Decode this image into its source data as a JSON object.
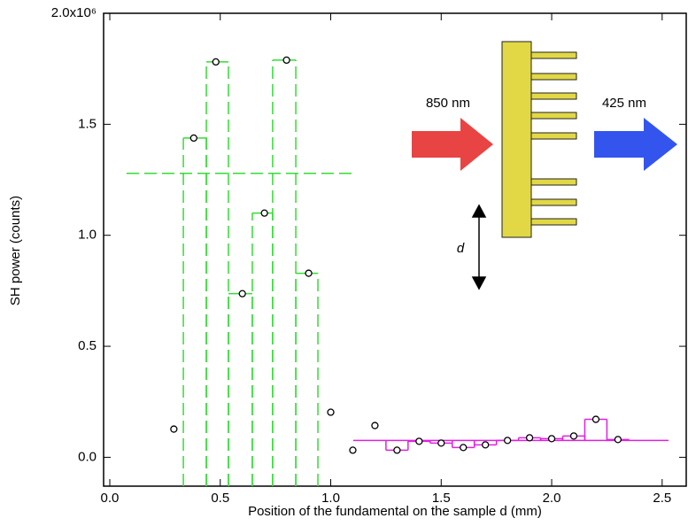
{
  "chart_data": {
    "type": "scatter",
    "xlabel": "Position of the fundamental on the sample d (mm)",
    "ylabel": "SH power (counts)",
    "x": [
      0.29,
      0.38,
      0.48,
      0.6,
      0.7,
      0.8,
      0.9,
      1.0,
      1.1,
      1.2,
      1.3,
      1.4,
      1.5,
      1.6,
      1.7,
      1.8,
      1.9,
      2.0,
      2.1,
      2.2,
      2.3
    ],
    "values": [
      127000,
      1438000,
      1781000,
      737000,
      1100000,
      1789000,
      829000,
      203000,
      32000,
      143000,
      32000,
      72000,
      64000,
      44000,
      56000,
      76000,
      88000,
      84000,
      96000,
      171000,
      80000
    ],
    "xlim": [
      -0.028,
      2.609
    ],
    "ylim": [
      -130000,
      2000000
    ],
    "xticks": [
      {
        "value": 0,
        "label": "0.0"
      },
      {
        "value": 0.5,
        "label": "0.5"
      },
      {
        "value": 1,
        "label": "1.0"
      },
      {
        "value": 1.5,
        "label": "1.5"
      },
      {
        "value": 2,
        "label": "2.0"
      },
      {
        "value": 2.5,
        "label": "2.5"
      }
    ],
    "yticks": [
      {
        "value": 0,
        "label": "0.0"
      },
      {
        "value": 500000,
        "label": "0.5"
      },
      {
        "value": 1000000,
        "label": "1.0"
      },
      {
        "value": 1500000,
        "label": "1.5"
      },
      {
        "value": 2000000,
        "label": "2.0x10⁶"
      }
    ],
    "steps": [
      {
        "color": "#33dd33",
        "bins": [
          0.333,
          0.437,
          0.537,
          0.645,
          0.737,
          0.842,
          0.942
        ],
        "values": [
          1438000,
          1781000,
          737000,
          1100000,
          1789000,
          829000
        ],
        "level": 1279000,
        "level_x": [
          0.076,
          1.106
        ]
      },
      {
        "color": "#e020e0",
        "bins": [
          1.25,
          1.35,
          1.45,
          1.55,
          1.65,
          1.75,
          1.85,
          1.95,
          2.05,
          2.15,
          2.25,
          2.35
        ],
        "values": [
          32000,
          72000,
          64000,
          44000,
          56000,
          76000,
          88000,
          84000,
          96000,
          171000,
          80000
        ],
        "level": 76000,
        "level_x": [
          1.102,
          2.529
        ]
      }
    ],
    "annotations": [
      "850 nm",
      "425 nm",
      "d"
    ]
  }
}
